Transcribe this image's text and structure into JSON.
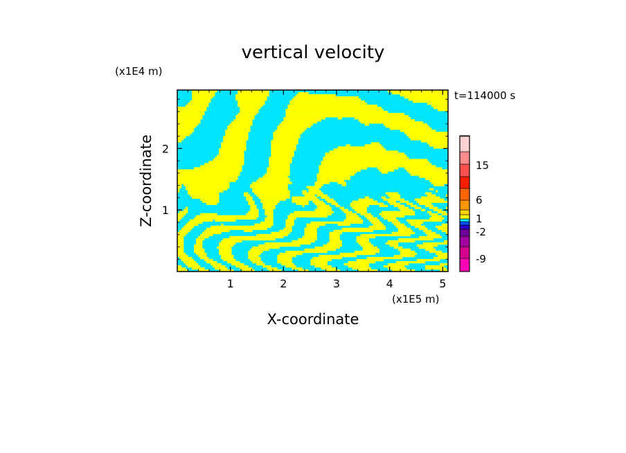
{
  "chart_data": {
    "type": "heatmap",
    "title": "vertical velocity",
    "xlabel": "X-coordinate",
    "ylabel": "Z-coordinate",
    "x_unit": "(x1E5 m)",
    "y_unit": "(x1E4 m)",
    "time_label": "t=114000 s",
    "xlim": [
      0,
      5.1
    ],
    "ylim": [
      0,
      2.95
    ],
    "x_ticks": [
      1,
      2,
      3,
      4,
      5
    ],
    "y_ticks": [
      1,
      2
    ],
    "field_colors": {
      "positive": "#ffff00",
      "negative": "#00e5ff"
    },
    "colorbar": {
      "levels_from_bottom": [
        "#ff00b4",
        "#d2008c",
        "#a000a0",
        "#6e0096",
        "#2800c8",
        "#0050ff",
        "#00e5ff",
        "#ffff00",
        "#ffd200",
        "#ff9600",
        "#ff6400",
        "#ff1e00",
        "#ff5050",
        "#ff8c8c",
        "#ffd2d2",
        "#fff0f0"
      ],
      "tick_labels": [
        {
          "label": "-9",
          "value": -9
        },
        {
          "label": "-2",
          "value": -2
        },
        {
          "label": "1",
          "value": 1
        },
        {
          "label": "6",
          "value": 6
        },
        {
          "label": "15",
          "value": 15
        }
      ]
    }
  }
}
